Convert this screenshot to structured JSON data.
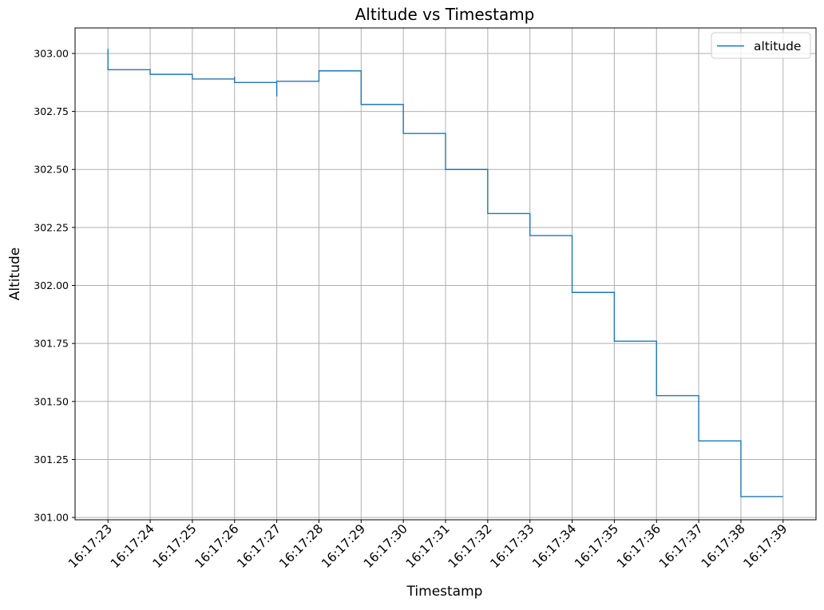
{
  "chart_data": {
    "type": "line",
    "title": "Altitude vs Timestamp",
    "xlabel": "Timestamp",
    "ylabel": "Altitude",
    "grid": true,
    "legend_position": "top-right",
    "line_style": "steps",
    "ylim": [
      300.99,
      303.11
    ],
    "xlim": [
      "16:17:22.22",
      "16:17:39.78"
    ],
    "yticks": [
      301.0,
      301.25,
      301.5,
      301.75,
      302.0,
      302.25,
      302.5,
      302.75,
      303.0
    ],
    "ytick_labels": [
      "301.00",
      "301.25",
      "301.50",
      "301.75",
      "302.00",
      "302.25",
      "302.50",
      "302.75",
      "303.00"
    ],
    "xticks": [
      "16:17:23",
      "16:17:24",
      "16:17:25",
      "16:17:26",
      "16:17:27",
      "16:17:28",
      "16:17:29",
      "16:17:30",
      "16:17:31",
      "16:17:32",
      "16:17:33",
      "16:17:34",
      "16:17:35",
      "16:17:36",
      "16:17:37",
      "16:17:38",
      "16:17:39"
    ],
    "series": [
      {
        "name": "altitude",
        "color": "#1f77b4",
        "points": [
          {
            "x": "16:17:23.00",
            "y": 303.02
          },
          {
            "x": "16:17:23.00",
            "y": 302.93
          },
          {
            "x": "16:17:24.00",
            "y": 302.91
          },
          {
            "x": "16:17:25.00",
            "y": 302.89
          },
          {
            "x": "16:17:26.00",
            "y": 302.9
          },
          {
            "x": "16:17:26.00",
            "y": 302.875
          },
          {
            "x": "16:17:27.00",
            "y": 302.815
          },
          {
            "x": "16:17:27.00",
            "y": 302.88
          },
          {
            "x": "16:17:28.00",
            "y": 302.925
          },
          {
            "x": "16:17:29.00",
            "y": 302.78
          },
          {
            "x": "16:17:30.00",
            "y": 302.655
          },
          {
            "x": "16:17:31.00",
            "y": 302.5
          },
          {
            "x": "16:17:32.00",
            "y": 302.31
          },
          {
            "x": "16:17:33.00",
            "y": 302.215
          },
          {
            "x": "16:17:34.00",
            "y": 301.97
          },
          {
            "x": "16:17:35.00",
            "y": 301.76
          },
          {
            "x": "16:17:36.00",
            "y": 301.525
          },
          {
            "x": "16:17:37.00",
            "y": 301.33
          },
          {
            "x": "16:17:38.00",
            "y": 301.09
          },
          {
            "x": "16:17:39.00",
            "y": 301.09
          }
        ]
      }
    ]
  }
}
